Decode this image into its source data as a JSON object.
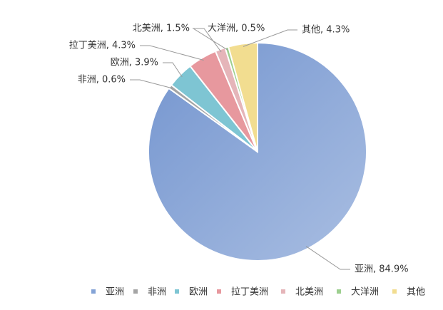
{
  "chart_data": {
    "type": "pie",
    "categories": [
      "亚洲",
      "非洲",
      "欧洲",
      "拉丁美洲",
      "北美洲",
      "大洋洲",
      "其他"
    ],
    "values": [
      84.9,
      0.6,
      3.9,
      4.3,
      1.5,
      0.5,
      4.3
    ],
    "value_labels": [
      "亚洲, 84.9%",
      "非洲, 0.6%",
      "欧洲, 3.9%",
      "拉丁美洲, 4.3%",
      "北美洲, 1.5%",
      "大洋洲, 0.5%",
      "其他, 4.3%"
    ],
    "colors": [
      "#84a3d6",
      "#a5a5a5",
      "#7ec5d3",
      "#e7989e",
      "#e5b5b9",
      "#9dcf8f",
      "#f2dd90"
    ],
    "legend": "bottom"
  }
}
